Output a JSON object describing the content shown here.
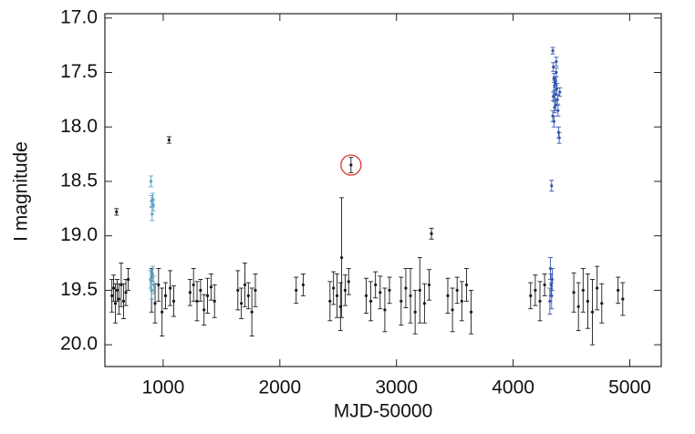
{
  "chart_data": {
    "type": "scatter",
    "xlabel": "MJD-50000",
    "ylabel": "I magnitude",
    "xlim": [
      500,
      5270
    ],
    "ylim": [
      20.2,
      16.96
    ],
    "xticks": [
      1000,
      2000,
      3000,
      4000,
      5000
    ],
    "yticks": [
      {
        "value": 17,
        "label": "17.0"
      },
      17.5,
      {
        "value": 18,
        "label": "18.0"
      },
      18.5,
      {
        "value": 19,
        "label": "19.0"
      },
      19.5,
      {
        "value": 20,
        "label": "20.0"
      }
    ],
    "series": [
      {
        "color": "#1a1a1a",
        "x": [
          560,
          575,
          590,
          605,
          620,
          640,
          660,
          680,
          700,
          900,
          930,
          960,
          990,
          1020,
          1060,
          1090,
          1230,
          1260,
          1290,
          1320,
          1350,
          1380,
          1410,
          1440,
          1640,
          1670,
          1700,
          1730,
          1760,
          1790,
          2140,
          2200,
          2430,
          2460,
          2490,
          2520,
          2560,
          2590,
          2740,
          2780,
          2820,
          2860,
          2900,
          2940,
          3040,
          3080,
          3120,
          3160,
          3200,
          3240,
          3280,
          3440,
          3480,
          3520,
          3560,
          3600,
          3640,
          4150,
          4190,
          4230,
          4270,
          4520,
          4560,
          4600,
          4640,
          4680,
          4720,
          4760,
          4900,
          4940,
          600,
          1050,
          3300,
          2530
        ],
        "values": [
          19.55,
          19.48,
          19.62,
          19.5,
          19.58,
          19.45,
          19.6,
          19.52,
          19.4,
          19.5,
          19.62,
          19.45,
          19.7,
          19.55,
          19.48,
          19.6,
          19.52,
          19.45,
          19.6,
          19.5,
          19.68,
          19.55,
          19.47,
          19.6,
          19.5,
          19.62,
          19.45,
          19.55,
          19.7,
          19.5,
          19.5,
          19.45,
          19.6,
          19.48,
          19.55,
          19.65,
          19.5,
          19.42,
          19.55,
          19.6,
          19.45,
          19.52,
          19.68,
          19.5,
          19.6,
          19.48,
          19.55,
          19.7,
          19.5,
          19.62,
          19.45,
          19.55,
          19.68,
          19.5,
          19.6,
          19.45,
          19.7,
          19.55,
          19.5,
          19.6,
          19.45,
          19.52,
          19.65,
          19.5,
          19.6,
          19.7,
          19.48,
          19.62,
          19.5,
          19.58,
          18.78,
          18.12,
          18.98,
          19.2
        ],
        "errors": [
          0.15,
          0.12,
          0.18,
          0.1,
          0.14,
          0.2,
          0.16,
          0.12,
          0.1,
          0.2,
          0.18,
          0.15,
          0.22,
          0.12,
          0.16,
          0.14,
          0.12,
          0.15,
          0.18,
          0.1,
          0.14,
          0.16,
          0.12,
          0.15,
          0.18,
          0.14,
          0.2,
          0.12,
          0.22,
          0.15,
          0.12,
          0.1,
          0.18,
          0.15,
          0.2,
          0.22,
          0.14,
          0.12,
          0.16,
          0.18,
          0.12,
          0.15,
          0.2,
          0.12,
          0.22,
          0.18,
          0.25,
          0.2,
          0.3,
          0.18,
          0.14,
          0.16,
          0.2,
          0.12,
          0.18,
          0.15,
          0.2,
          0.12,
          0.14,
          0.18,
          0.1,
          0.18,
          0.22,
          0.2,
          0.25,
          0.3,
          0.2,
          0.18,
          0.12,
          0.15,
          0.03,
          0.03,
          0.05,
          0.55
        ]
      },
      {
        "color": "#5aa3c8",
        "x": [
          895,
          900,
          905,
          910,
          915,
          890,
          900,
          910,
          920
        ],
        "values": [
          18.5,
          18.68,
          18.8,
          18.66,
          18.72,
          19.4,
          19.5,
          19.35,
          19.45
        ],
        "errors": [
          0.05,
          0.05,
          0.06,
          0.05,
          0.05,
          0.08,
          0.08,
          0.07,
          0.08
        ]
      },
      {
        "color": "#3457b0",
        "x": [
          4340,
          4345,
          4350,
          4355,
          4360,
          4365,
          4370,
          4375,
          4380,
          4385,
          4340,
          4350,
          4360,
          4370,
          4345,
          4355,
          4365,
          4390,
          4395,
          4400,
          4330,
          4320,
          4325,
          4330,
          4335,
          4315
        ],
        "values": [
          17.3,
          17.45,
          17.55,
          17.62,
          17.7,
          17.8,
          17.5,
          17.65,
          17.75,
          17.85,
          17.9,
          17.95,
          17.6,
          17.4,
          17.72,
          17.82,
          17.58,
          18.05,
          18.1,
          17.68,
          18.54,
          19.3,
          19.45,
          19.55,
          19.4,
          19.6
        ],
        "errors": [
          0.03,
          0.04,
          0.04,
          0.05,
          0.04,
          0.05,
          0.04,
          0.05,
          0.04,
          0.05,
          0.05,
          0.05,
          0.04,
          0.04,
          0.04,
          0.05,
          0.04,
          0.05,
          0.05,
          0.04,
          0.05,
          0.1,
          0.1,
          0.12,
          0.1,
          0.12
        ]
      },
      {
        "color": "#1a1a1a",
        "ring": "#d9362f",
        "x": [
          2610
        ],
        "values": [
          18.35
        ],
        "errors": [
          0.07
        ]
      }
    ]
  }
}
